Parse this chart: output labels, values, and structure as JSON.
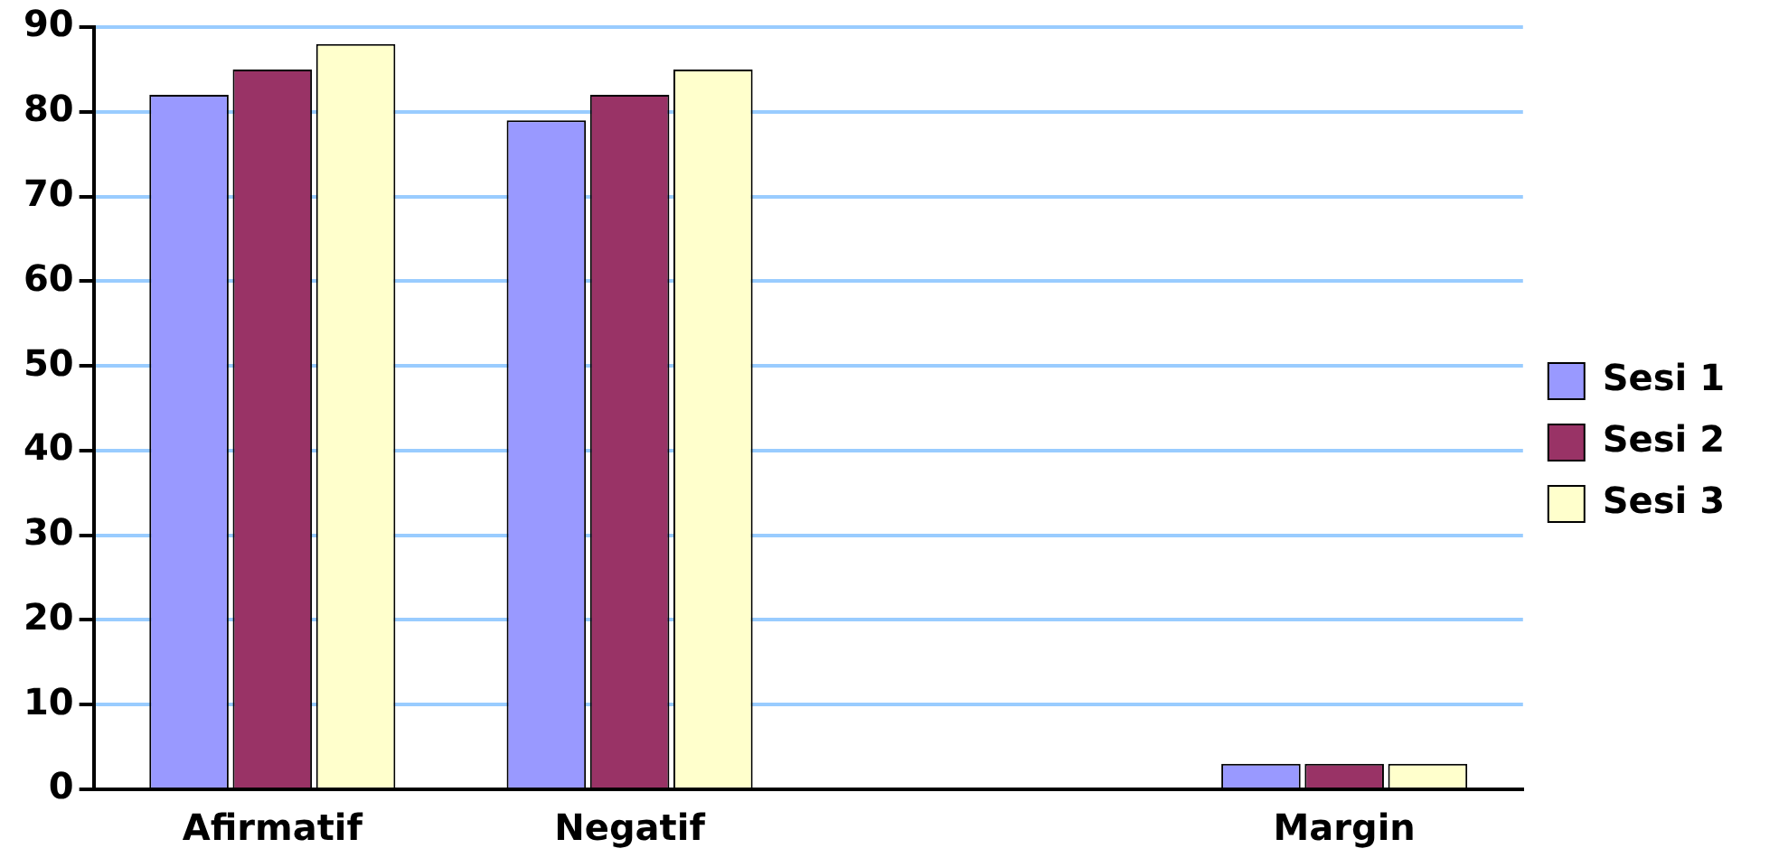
{
  "chart_data": {
    "type": "bar",
    "categories": [
      "Afirmatif",
      "Negatif",
      null,
      "Margin"
    ],
    "series": [
      {
        "name": "Sesi 1",
        "color": "#9999ff",
        "values": [
          82,
          79,
          null,
          3
        ]
      },
      {
        "name": "Sesi 2",
        "color": "#993366",
        "values": [
          85,
          82,
          null,
          3
        ]
      },
      {
        "name": "Sesi 3",
        "color": "#ffffcc",
        "values": [
          88,
          85,
          null,
          3
        ]
      }
    ],
    "ylim": [
      0,
      90
    ],
    "yticks": [
      0,
      10,
      20,
      30,
      40,
      50,
      60,
      70,
      80,
      90
    ],
    "grid": "y",
    "legend": "right"
  }
}
